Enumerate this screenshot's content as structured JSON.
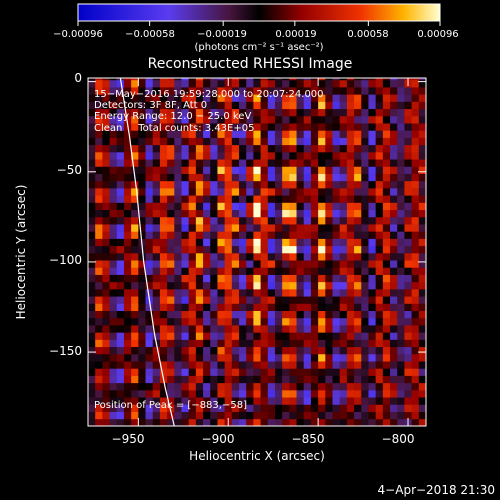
{
  "chart_data": {
    "type": "heatmap",
    "title": "Reconstructed RHESSI Image",
    "xlabel": "Heliocentric X (arcsec)",
    "ylabel": "Heliocentric Y (arcsec)",
    "xlim": [
      -978,
      -790
    ],
    "ylim": [
      -191,
      2
    ],
    "x_ticks": [
      -950,
      -900,
      -850,
      -800
    ],
    "x_tick_labels": [
      "−950",
      "−900",
      "−850",
      "−800"
    ],
    "y_ticks": [
      0,
      -50,
      -100,
      -150
    ],
    "y_tick_labels": [
      "0",
      "−50",
      "−100",
      "−150"
    ],
    "colorbar": {
      "min": -0.00096,
      "max": 0.00096,
      "ticks": [
        -0.00096,
        -0.00058,
        -0.00019,
        0.00019,
        0.00058,
        0.00096
      ],
      "tick_labels": [
        "−0.00096",
        "−0.00058",
        "−0.00019",
        "0.00019",
        "0.00058",
        "0.00096"
      ],
      "label": "(photons cm⁻² s⁻¹ asec⁻²)"
    },
    "annotations": [
      "15−May−2016 19:59:28.000 to 20:07:24.000",
      "Detectors: 3F 8F, Att 0",
      "Energy Range: 12.0 − 25.0 keV",
      "Clean     Total counts: 3.43E+05"
    ],
    "peak_text": "Position of Peak = [−883,−58]",
    "peak": [
      -883,
      -58
    ],
    "limb_curve": [
      [
        -960,
        2
      ],
      [
        -955,
        -30
      ],
      [
        -951,
        -60
      ],
      [
        -947,
        -100
      ],
      [
        -941,
        -140
      ],
      [
        -935,
        -170
      ],
      [
        -930,
        -191
      ]
    ]
  },
  "footer": {
    "timestamp": "4−Apr−2018 21:30"
  }
}
